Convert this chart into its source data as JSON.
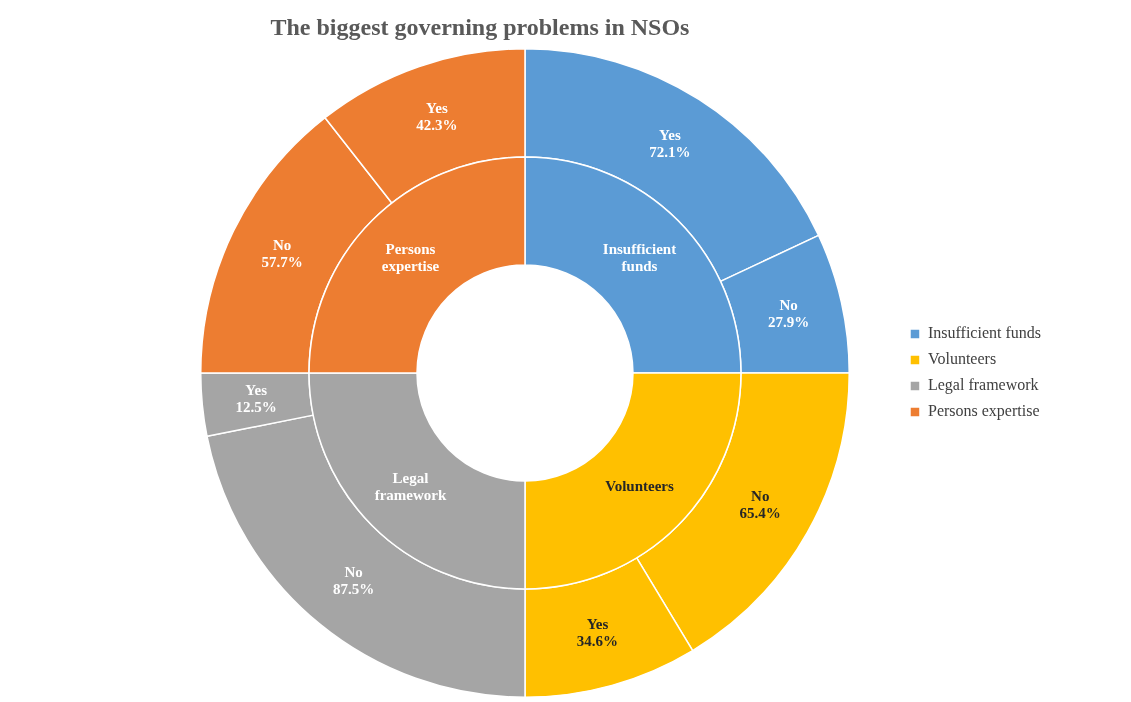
{
  "chart_data": [
    {
      "type": "donut",
      "title": "The biggest governing problems in NSOs",
      "categories": [
        "Insufficient funds",
        "Volunteers",
        "Legal framework",
        "Persons expertise"
      ],
      "values": [
        25,
        25,
        25,
        25
      ],
      "colors": [
        "#5b9bd5",
        "#ffc000",
        "#a5a5a5",
        "#ed7d31"
      ],
      "legend": "right"
    },
    {
      "type": "donut",
      "categories": [
        "Yes",
        "No",
        "No",
        "Yes",
        "No",
        "Yes",
        "No",
        "Yes"
      ],
      "values": [
        72.1,
        27.9,
        65.4,
        34.6,
        87.5,
        12.5,
        57.7,
        42.3
      ],
      "value_labels": [
        "72.1%",
        "27.9%",
        "65.4%",
        "34.6%",
        "87.5%",
        "12.5%",
        "57.7%",
        "42.3%"
      ],
      "colors": [
        "#5b9bd5",
        "#5b9bd5",
        "#ffc000",
        "#ffc000",
        "#a5a5a5",
        "#a5a5a5",
        "#ed7d31",
        "#ed7d31"
      ]
    }
  ]
}
